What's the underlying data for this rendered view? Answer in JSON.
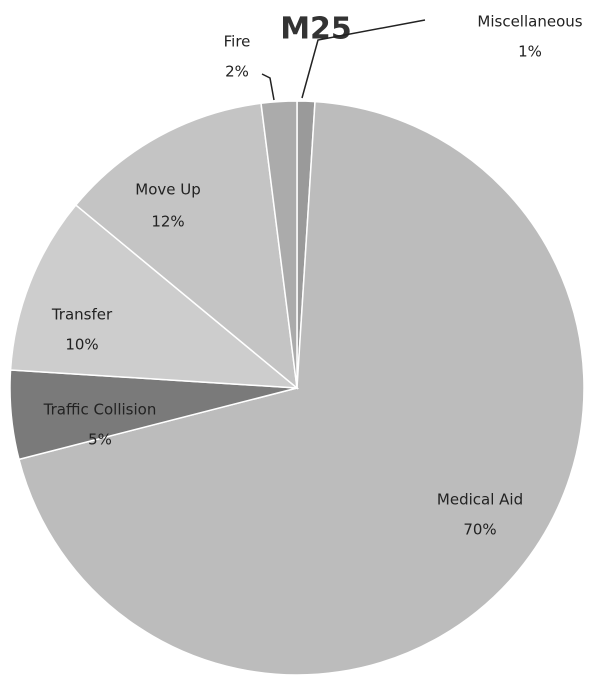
{
  "chart_data": {
    "type": "pie",
    "title": "M25",
    "categories": [
      "Miscellaneous",
      "Medical Aid",
      "Traffic Collision",
      "Transfer",
      "Move Up",
      "Fire"
    ],
    "values": [
      1,
      70,
      5,
      10,
      12,
      2
    ],
    "value_labels": [
      "1%",
      "70%",
      "5%",
      "10%",
      "12%",
      "2%"
    ],
    "colors": [
      "#9a9a9a",
      "#bcbcbc",
      "#7a7a7a",
      "#cdcdcd",
      "#c4c4c4",
      "#ababab"
    ]
  }
}
